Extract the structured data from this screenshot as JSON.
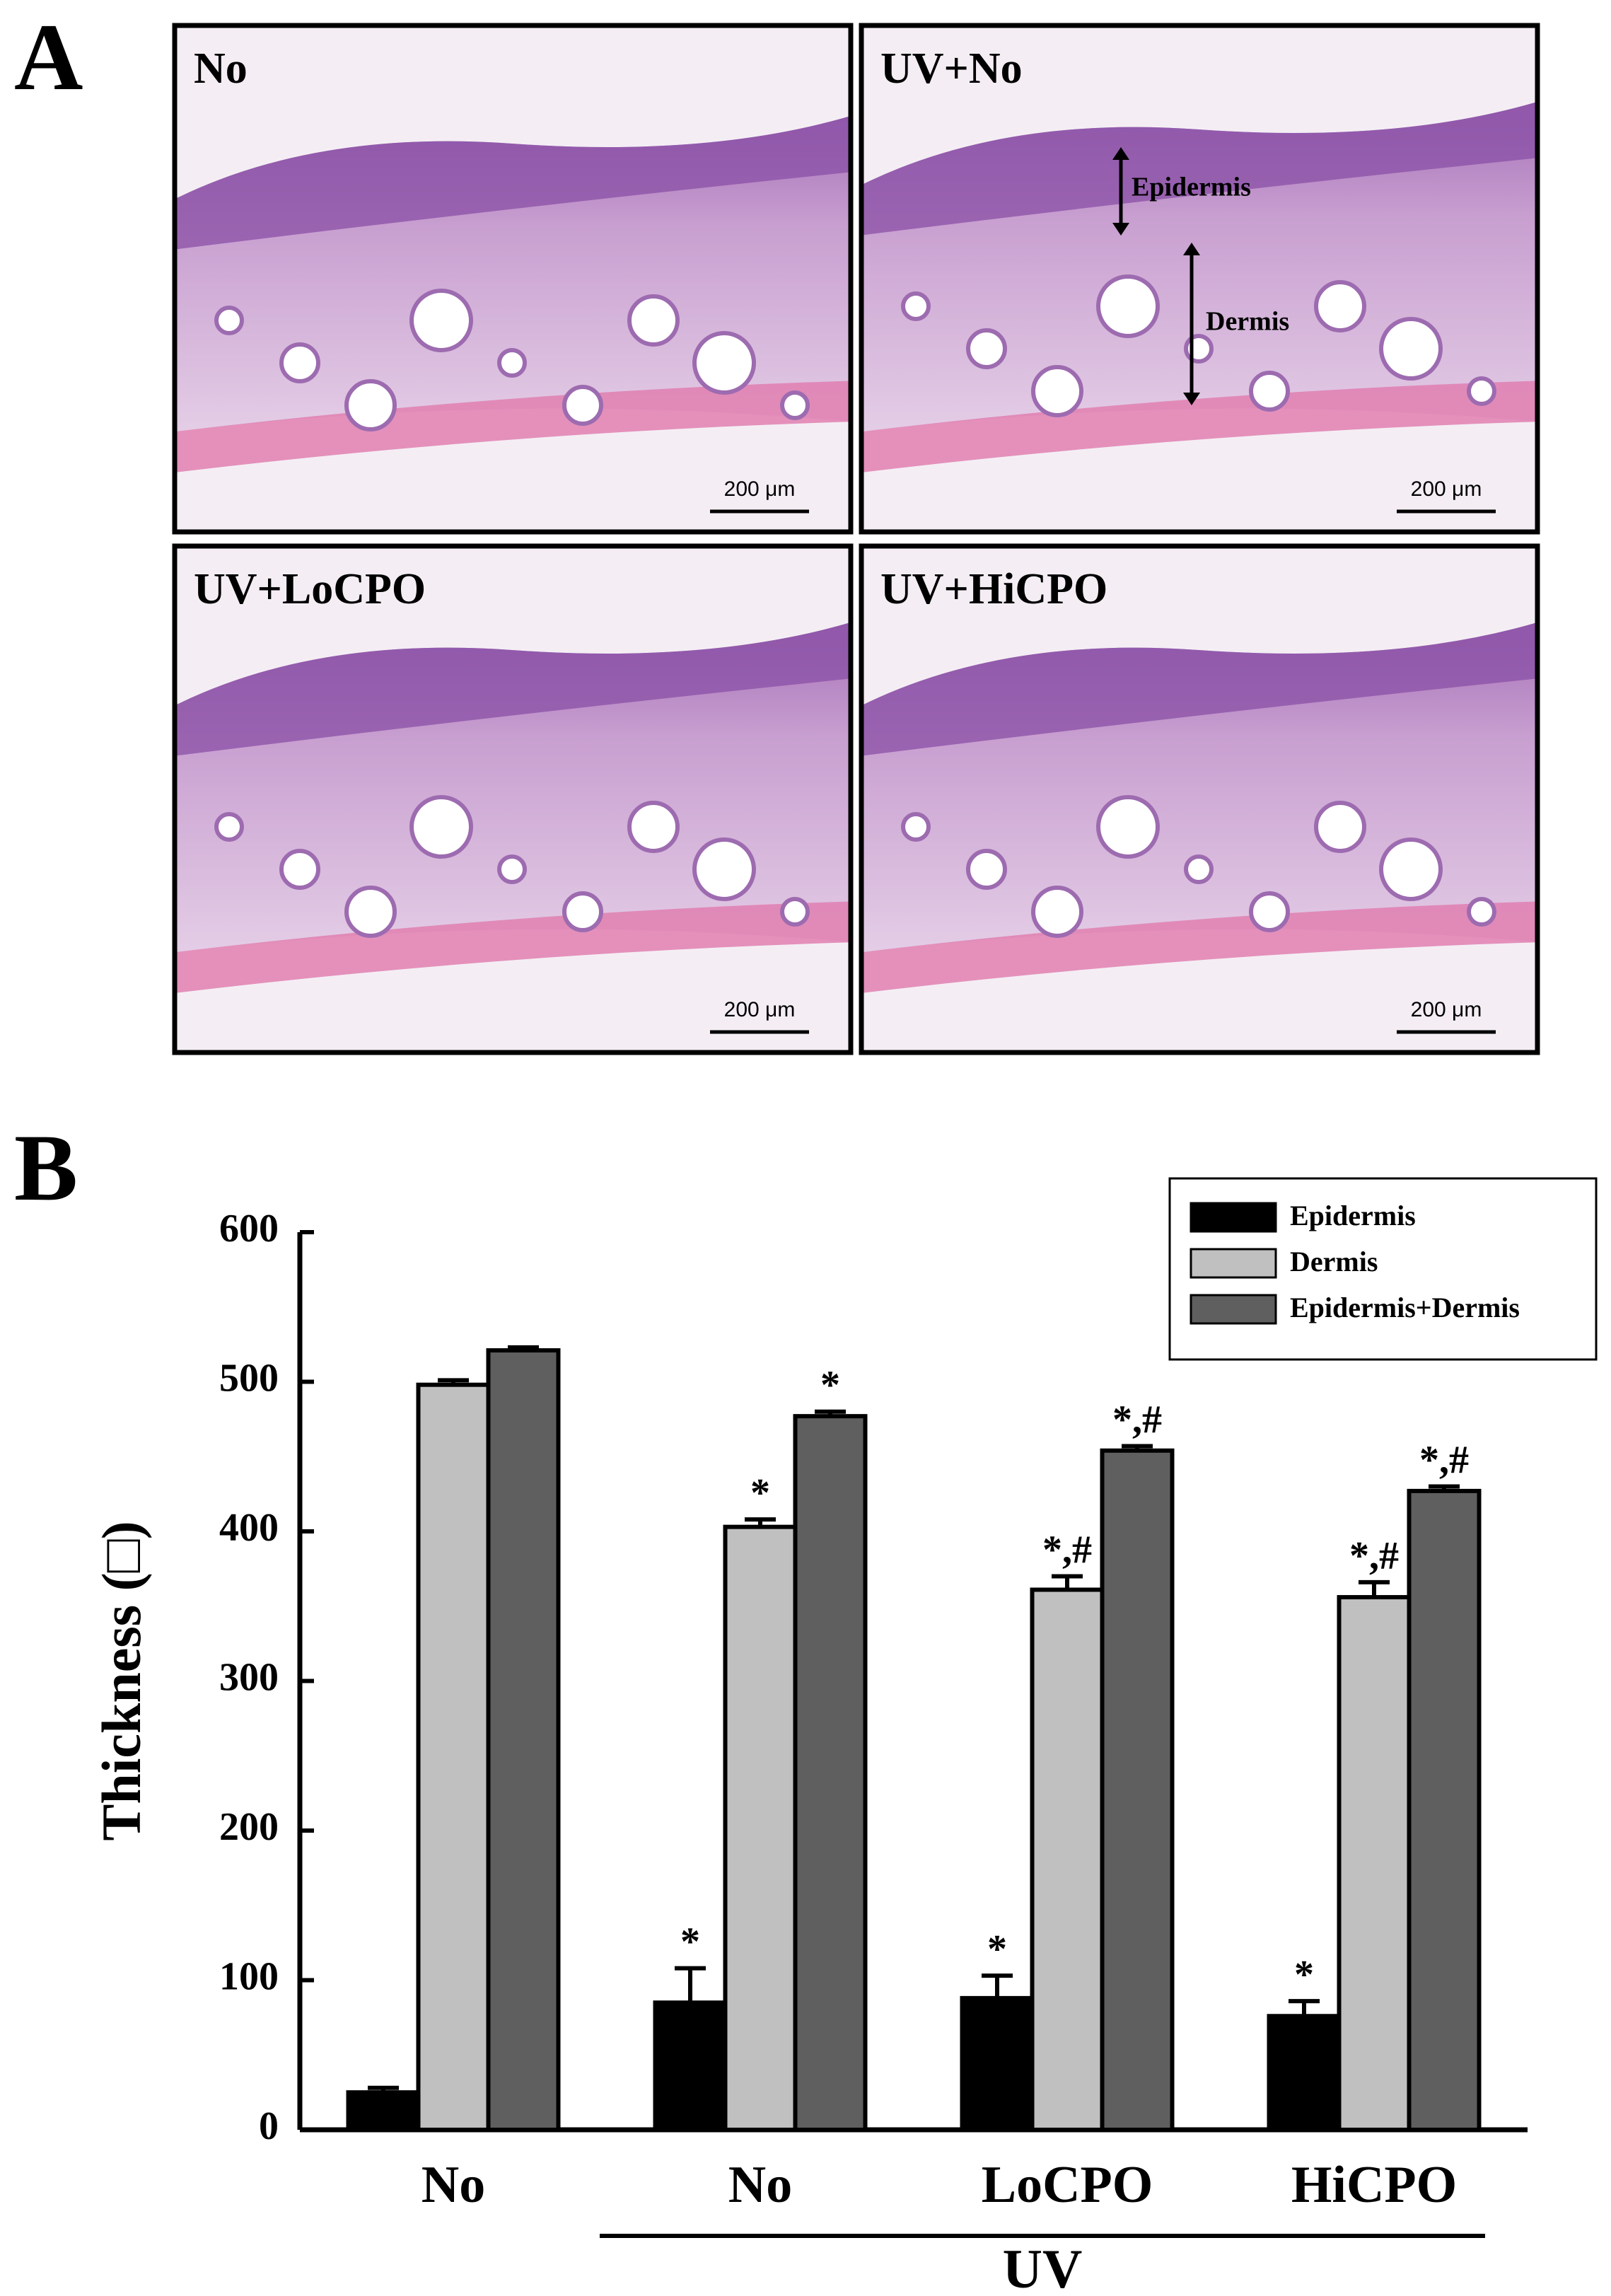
{
  "figure_labels": [
    "A",
    "B"
  ],
  "panel_a": {
    "panels": [
      {
        "label": "No",
        "scale_bar": "200 μm"
      },
      {
        "label": "UV+No",
        "scale_bar": "200 μm"
      },
      {
        "label": "UV+LoCPO",
        "scale_bar": "200 μm"
      },
      {
        "label": "UV+HiCPO",
        "scale_bar": "200 μm"
      }
    ],
    "annotations": [
      "Epidermis",
      "Dermis"
    ]
  },
  "chart_data": {
    "type": "bar",
    "ylabel": "Thickness (□)",
    "categories": [
      "No",
      "No",
      "LoCPO",
      "HiCPO"
    ],
    "group_label": "UV",
    "ylim": [
      0,
      600
    ],
    "yticks": [
      0,
      100,
      200,
      300,
      400,
      500,
      600
    ],
    "legend": "upper right",
    "series": [
      {
        "name": "Epidermis",
        "color": "#000000",
        "values": [
          25,
          85,
          88,
          76
        ],
        "errors": [
          3,
          23,
          15,
          10
        ],
        "annotations": [
          null,
          "*",
          "*",
          "*"
        ]
      },
      {
        "name": "Dermis",
        "color": "#c0c0c0",
        "values": [
          498,
          403,
          361,
          356
        ],
        "errors": [
          3,
          5,
          9,
          10
        ],
        "annotations": [
          null,
          "*",
          "*,#",
          "*,#"
        ]
      },
      {
        "name": "Epidermis+Dermis",
        "color": "#5f5f5f",
        "values": [
          521,
          477,
          454,
          427
        ],
        "errors": [
          2,
          3,
          3,
          3
        ],
        "annotations": [
          null,
          "*",
          "*,#",
          "*,#"
        ]
      }
    ]
  }
}
